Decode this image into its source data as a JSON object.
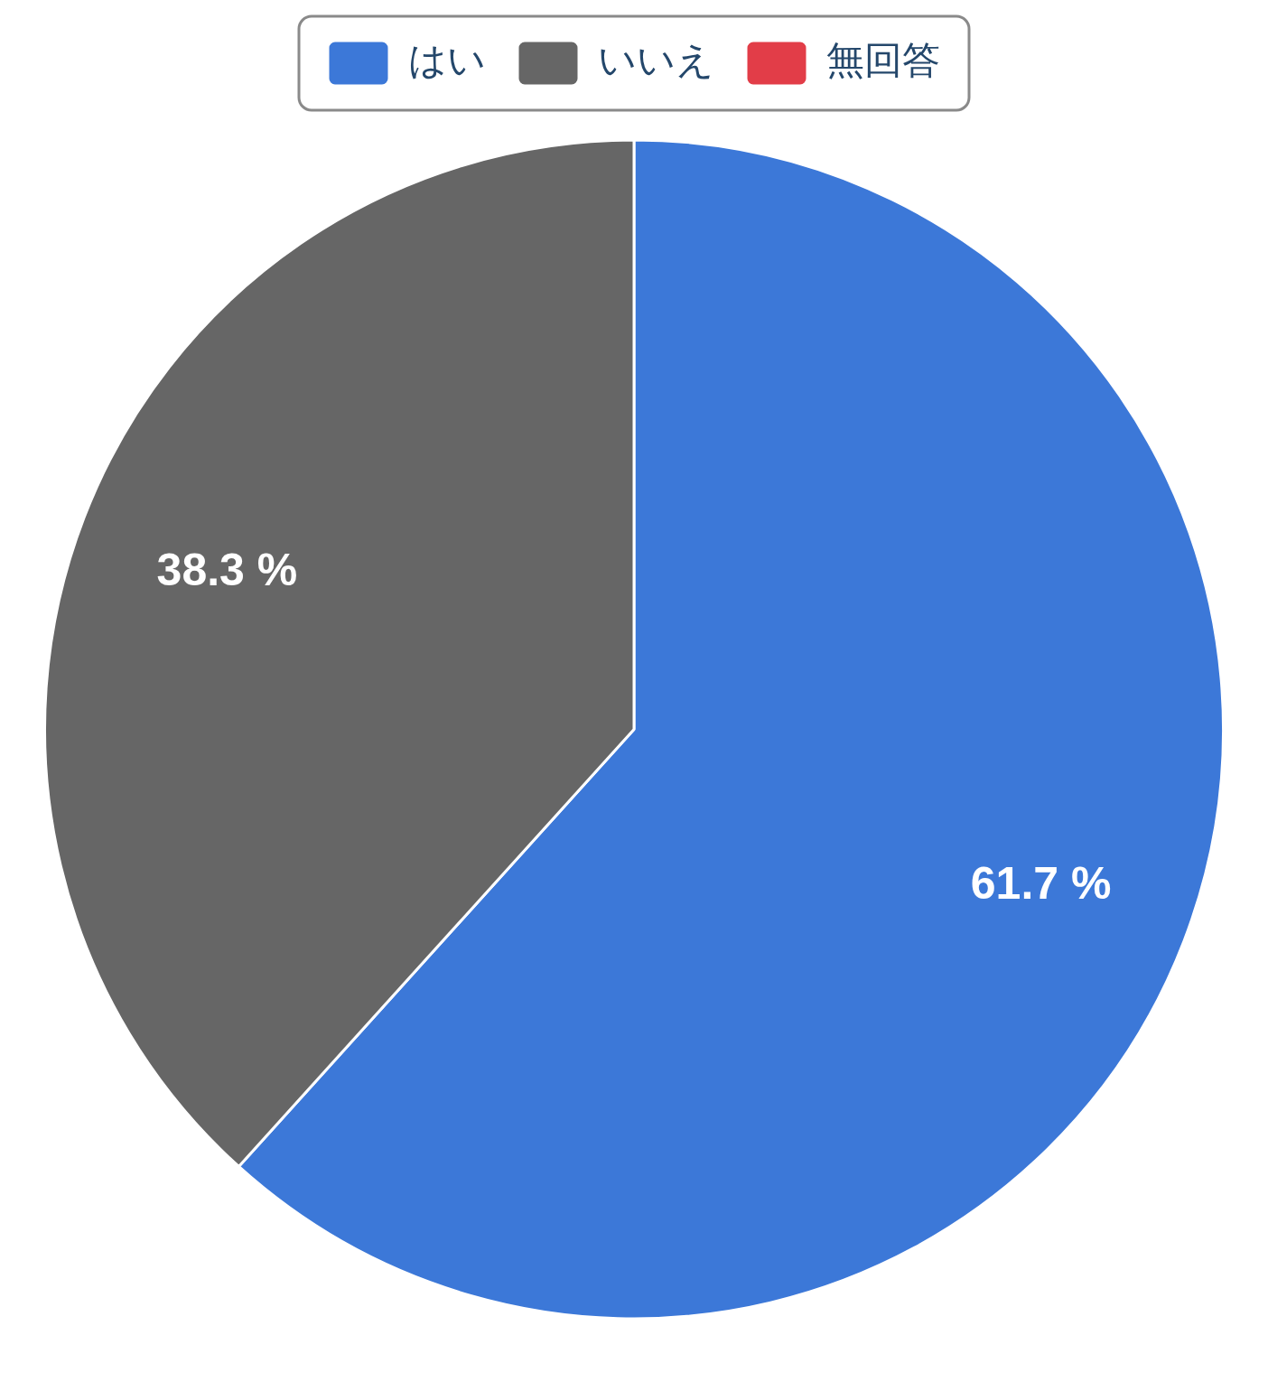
{
  "chart_data": {
    "type": "pie",
    "categories": [
      "はい",
      "いいえ",
      "無回答"
    ],
    "values": [
      61.7,
      38.3,
      0
    ],
    "colors": [
      "#3c78d8",
      "#666666",
      "#e23d48"
    ],
    "value_labels": [
      "61.7 %",
      "38.3 %",
      null
    ],
    "legend": "top"
  }
}
